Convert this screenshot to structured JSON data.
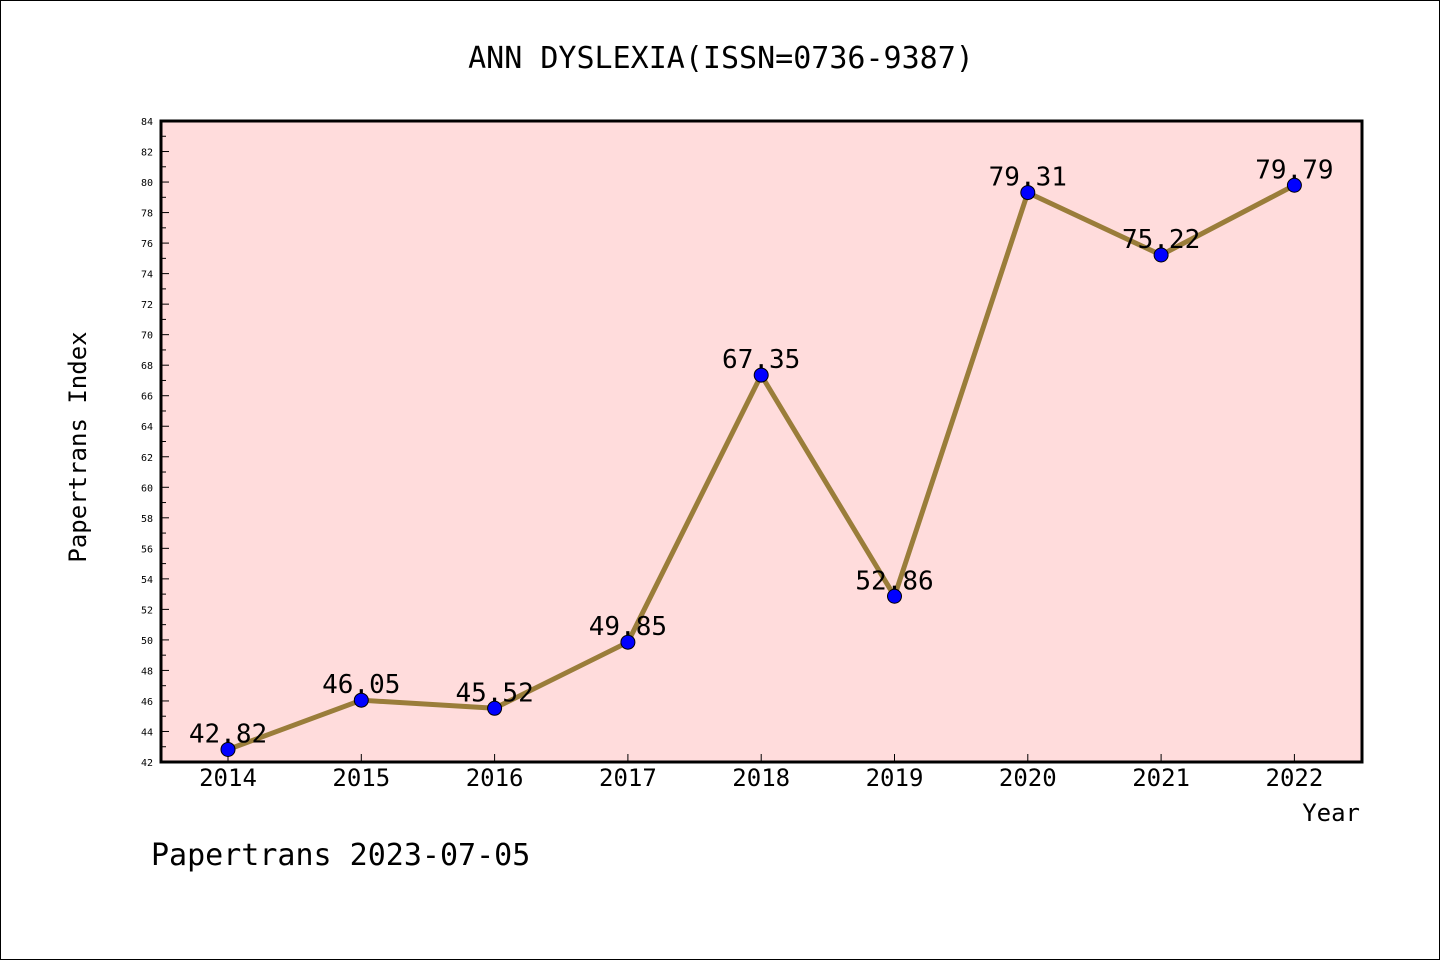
{
  "chart_data": {
    "type": "line",
    "title": "ANN DYSLEXIA(ISSN=0736-9387)",
    "xlabel": "Year",
    "ylabel": "Papertrans Index",
    "categories": [
      "2014",
      "2015",
      "2016",
      "2017",
      "2018",
      "2019",
      "2020",
      "2021",
      "2022"
    ],
    "series": [
      {
        "values": [
          42.82,
          46.05,
          45.52,
          49.85,
          67.35,
          52.86,
          79.31,
          75.22,
          79.79
        ],
        "labels": [
          "42.82",
          "46.05",
          "45.52",
          "49.85",
          "67.35",
          "52.86",
          "79.31",
          "75.22",
          "79.79"
        ],
        "line_color": "#9a7d3a",
        "marker_color": "#0000ff"
      }
    ],
    "ylim": [
      42,
      84
    ],
    "yticks": [
      "42",
      "44",
      "46",
      "48",
      "50",
      "52",
      "54",
      "56",
      "58",
      "60",
      "62",
      "64",
      "66",
      "68",
      "70",
      "72",
      "74",
      "76",
      "78",
      "80",
      "82",
      "84"
    ],
    "plot_background": "#ffdcdc",
    "grid": false,
    "legend": "none"
  },
  "footer": {
    "text": "Papertrans 2023-07-05"
  }
}
